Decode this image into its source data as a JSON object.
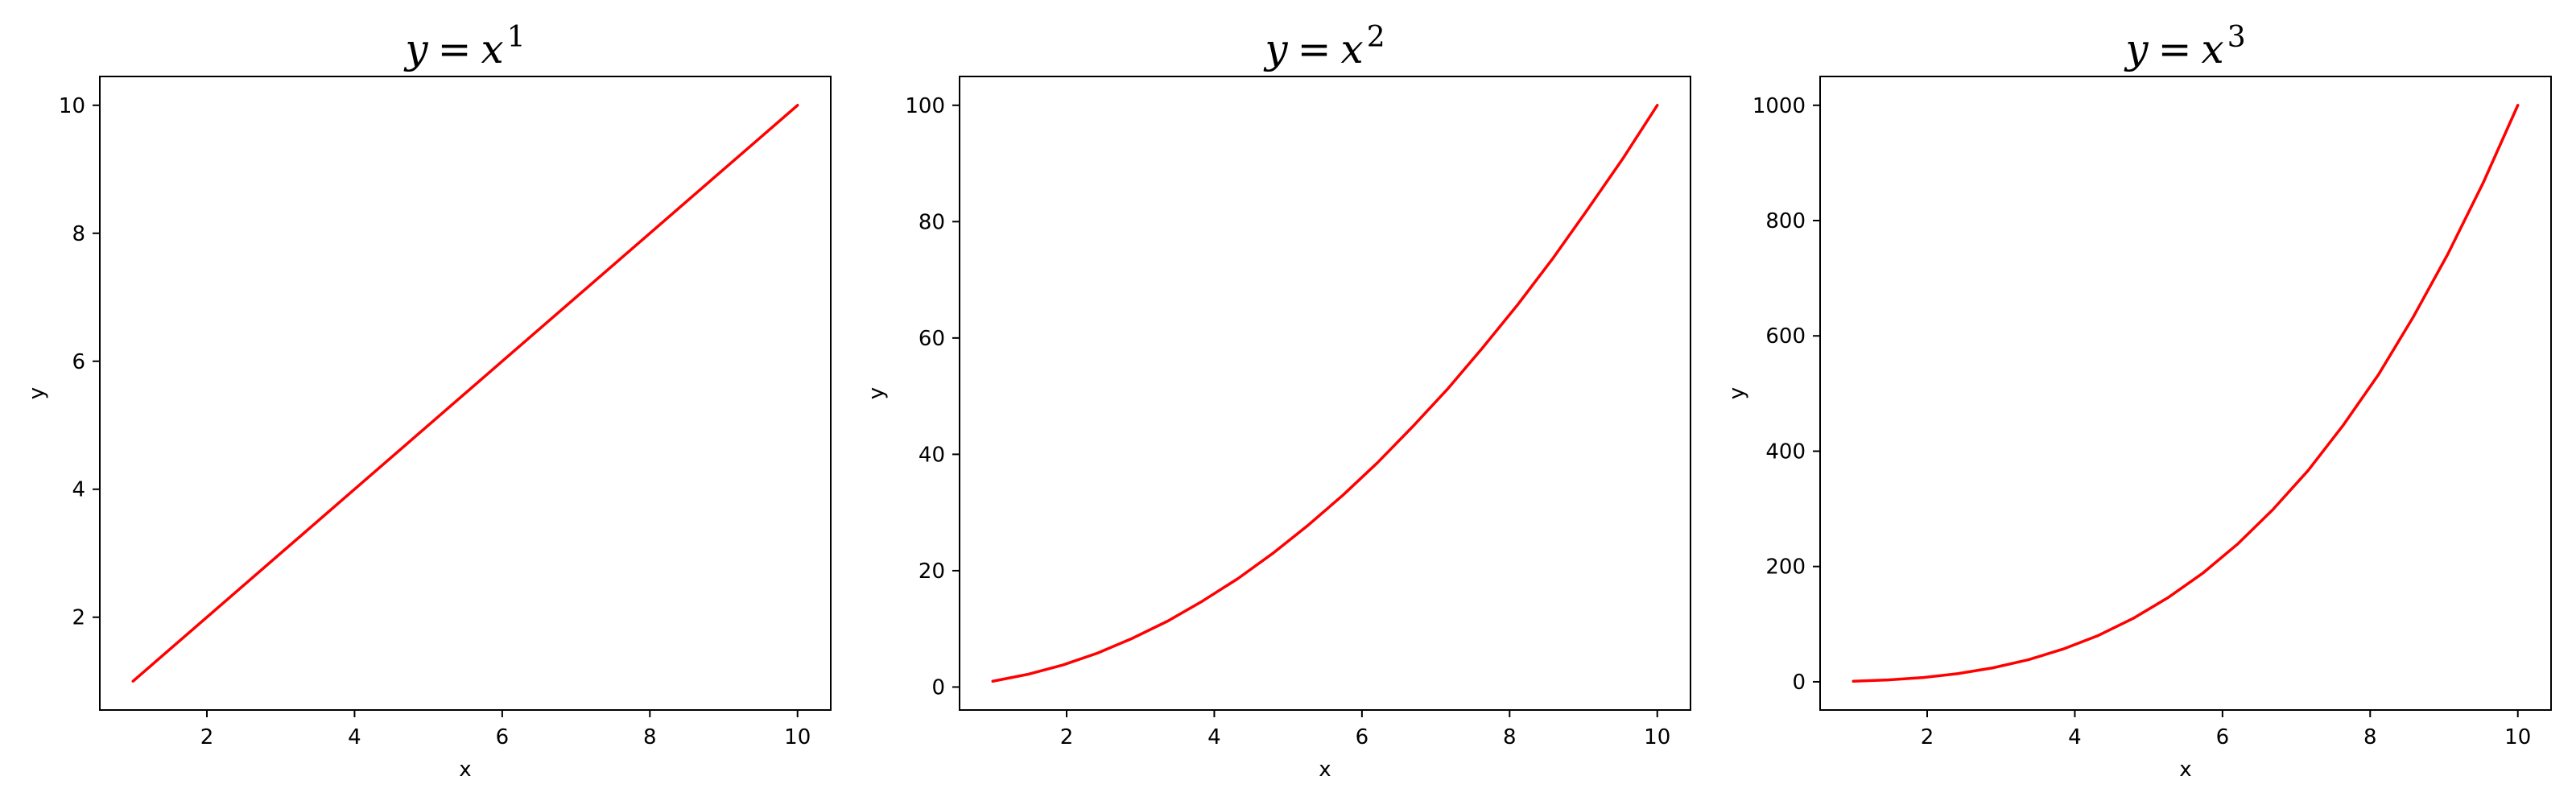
{
  "chart_data": [
    {
      "type": "line",
      "title_base": "y = x",
      "title_exponent": "1",
      "xlabel": "x",
      "ylabel": "y",
      "xlim": [
        0.55,
        10.45
      ],
      "ylim": [
        0.55,
        10.45
      ],
      "xticks": [
        2,
        4,
        6,
        8,
        10
      ],
      "yticks": [
        2,
        4,
        6,
        8,
        10
      ],
      "line_color": "#ff0000",
      "series": [
        {
          "x": [
            1,
            1.47,
            1.95,
            2.42,
            2.89,
            3.37,
            3.84,
            4.32,
            4.79,
            5.26,
            5.74,
            6.21,
            6.68,
            7.16,
            7.63,
            8.11,
            8.58,
            9.05,
            9.53,
            10
          ],
          "y": [
            1,
            1.47,
            1.95,
            2.42,
            2.89,
            3.37,
            3.84,
            4.32,
            4.79,
            5.26,
            5.74,
            6.21,
            6.68,
            7.16,
            7.63,
            8.11,
            8.58,
            9.05,
            9.53,
            10
          ]
        }
      ]
    },
    {
      "type": "line",
      "title_base": "y = x",
      "title_exponent": "2",
      "xlabel": "x",
      "ylabel": "y",
      "xlim": [
        0.55,
        10.45
      ],
      "ylim": [
        -3.95,
        104.95
      ],
      "xticks": [
        2,
        4,
        6,
        8,
        10
      ],
      "yticks": [
        0,
        20,
        40,
        60,
        80,
        100
      ],
      "line_color": "#ff0000",
      "series": [
        {
          "x": [
            1,
            1.47,
            1.95,
            2.42,
            2.89,
            3.37,
            3.84,
            4.32,
            4.79,
            5.26,
            5.74,
            6.21,
            6.68,
            7.16,
            7.63,
            8.11,
            8.58,
            9.05,
            9.53,
            10
          ],
          "y": [
            1,
            2.17,
            3.79,
            5.84,
            8.37,
            11.34,
            14.77,
            18.64,
            22.95,
            27.7,
            32.95,
            38.56,
            44.67,
            51.23,
            58.25,
            65.73,
            73.58,
            81.98,
            90.76,
            100
          ]
        }
      ]
    },
    {
      "type": "line",
      "title_base": "y = x",
      "title_exponent": "3",
      "xlabel": "x",
      "ylabel": "y",
      "xlim": [
        0.55,
        10.45
      ],
      "ylim": [
        -48.95,
        1049.95
      ],
      "xticks": [
        2,
        4,
        6,
        8,
        10
      ],
      "yticks": [
        0,
        200,
        400,
        600,
        800,
        1000
      ],
      "line_color": "#ff0000",
      "series": [
        {
          "x": [
            1,
            1.47,
            1.95,
            2.42,
            2.89,
            3.37,
            3.84,
            4.32,
            4.79,
            5.26,
            5.74,
            6.21,
            6.68,
            7.16,
            7.63,
            8.11,
            8.58,
            9.05,
            9.53,
            10
          ],
          "y": [
            1,
            3.2,
            7.4,
            14.2,
            24.2,
            38.2,
            56.7,
            80.4,
            109.9,
            145.8,
            189.1,
            239.5,
            298.4,
            366.6,
            444.2,
            532.2,
            631.9,
            741.4,
            865.3,
            1000
          ]
        }
      ]
    }
  ]
}
